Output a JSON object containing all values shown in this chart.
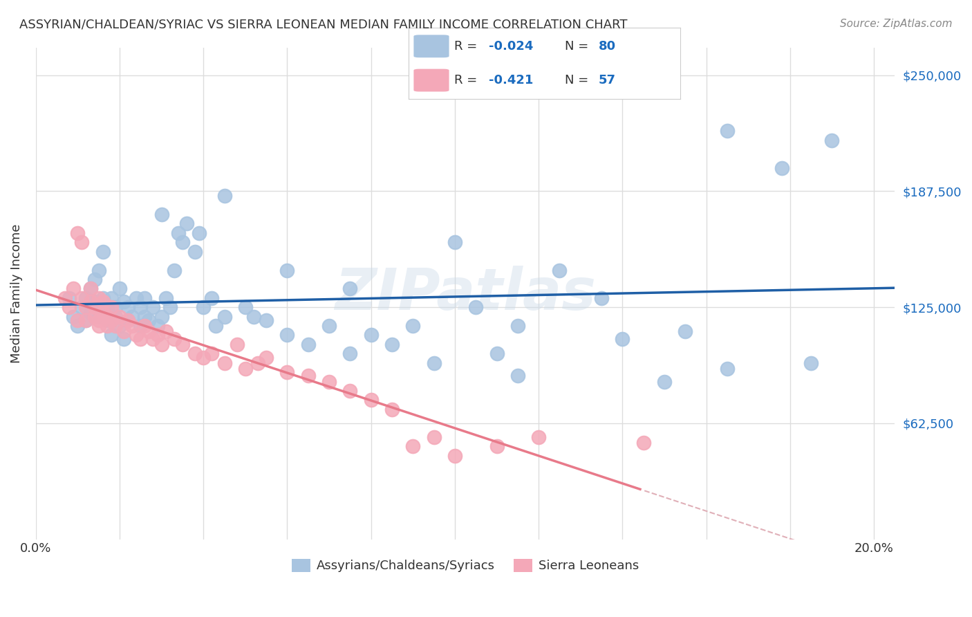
{
  "title": "ASSYRIAN/CHALDEAN/SYRIAC VS SIERRA LEONEAN MEDIAN FAMILY INCOME CORRELATION CHART",
  "source": "Source: ZipAtlas.com",
  "ylabel": "Median Family Income",
  "ytick_labels": [
    "$62,500",
    "$125,000",
    "$187,500",
    "$250,000"
  ],
  "ytick_values": [
    62500,
    125000,
    187500,
    250000
  ],
  "ylim": [
    0,
    265000
  ],
  "xlim": [
    0,
    0.205
  ],
  "blue_r": -0.024,
  "blue_n": 80,
  "pink_r": -0.421,
  "pink_n": 57,
  "blue_color": "#a8c4e0",
  "pink_color": "#f4a8b8",
  "blue_line_color": "#1f5fa6",
  "pink_line_color": "#e87a8a",
  "trend_line_color_pink_dash": "#e0b0b8",
  "watermark": "ZIPatlas",
  "background_color": "#ffffff",
  "grid_color": "#dddddd",
  "blue_scatter_x": [
    0.008,
    0.009,
    0.01,
    0.011,
    0.012,
    0.012,
    0.013,
    0.013,
    0.014,
    0.014,
    0.015,
    0.015,
    0.015,
    0.016,
    0.016,
    0.016,
    0.017,
    0.017,
    0.018,
    0.018,
    0.019,
    0.019,
    0.02,
    0.02,
    0.021,
    0.021,
    0.022,
    0.022,
    0.023,
    0.024,
    0.025,
    0.025,
    0.026,
    0.026,
    0.027,
    0.028,
    0.029,
    0.03,
    0.031,
    0.032,
    0.033,
    0.034,
    0.035,
    0.036,
    0.038,
    0.039,
    0.04,
    0.042,
    0.043,
    0.045,
    0.05,
    0.052,
    0.055,
    0.06,
    0.065,
    0.07,
    0.075,
    0.08,
    0.085,
    0.09,
    0.1,
    0.105,
    0.11,
    0.115,
    0.125,
    0.135,
    0.15,
    0.165,
    0.178,
    0.19,
    0.03,
    0.045,
    0.06,
    0.075,
    0.095,
    0.115,
    0.14,
    0.155,
    0.165,
    0.185
  ],
  "blue_scatter_y": [
    130000,
    120000,
    115000,
    125000,
    118000,
    130000,
    122000,
    135000,
    128000,
    140000,
    120000,
    125000,
    145000,
    130000,
    120000,
    155000,
    125000,
    118000,
    110000,
    130000,
    120000,
    125000,
    115000,
    135000,
    108000,
    128000,
    118000,
    125000,
    120000,
    130000,
    125000,
    115000,
    130000,
    120000,
    118000,
    125000,
    115000,
    120000,
    130000,
    125000,
    145000,
    165000,
    160000,
    170000,
    155000,
    165000,
    125000,
    130000,
    115000,
    120000,
    125000,
    120000,
    118000,
    110000,
    105000,
    115000,
    100000,
    110000,
    105000,
    115000,
    160000,
    125000,
    100000,
    115000,
    145000,
    130000,
    85000,
    220000,
    200000,
    215000,
    175000,
    185000,
    145000,
    135000,
    95000,
    88000,
    108000,
    112000,
    92000,
    95000
  ],
  "pink_scatter_x": [
    0.007,
    0.008,
    0.009,
    0.01,
    0.01,
    0.011,
    0.011,
    0.012,
    0.012,
    0.013,
    0.013,
    0.014,
    0.014,
    0.015,
    0.015,
    0.015,
    0.016,
    0.016,
    0.017,
    0.017,
    0.018,
    0.018,
    0.019,
    0.02,
    0.021,
    0.022,
    0.023,
    0.024,
    0.025,
    0.026,
    0.027,
    0.028,
    0.029,
    0.03,
    0.031,
    0.033,
    0.035,
    0.038,
    0.04,
    0.042,
    0.045,
    0.048,
    0.05,
    0.053,
    0.055,
    0.06,
    0.065,
    0.07,
    0.075,
    0.08,
    0.085,
    0.09,
    0.095,
    0.1,
    0.11,
    0.12,
    0.145
  ],
  "pink_scatter_y": [
    130000,
    125000,
    135000,
    118000,
    165000,
    160000,
    130000,
    125000,
    118000,
    135000,
    128000,
    120000,
    125000,
    115000,
    118000,
    130000,
    122000,
    128000,
    115000,
    120000,
    118000,
    125000,
    115000,
    120000,
    112000,
    118000,
    115000,
    110000,
    108000,
    115000,
    112000,
    108000,
    110000,
    105000,
    112000,
    108000,
    105000,
    100000,
    98000,
    100000,
    95000,
    105000,
    92000,
    95000,
    98000,
    90000,
    88000,
    85000,
    80000,
    75000,
    70000,
    50000,
    55000,
    45000,
    50000,
    55000,
    52000
  ]
}
